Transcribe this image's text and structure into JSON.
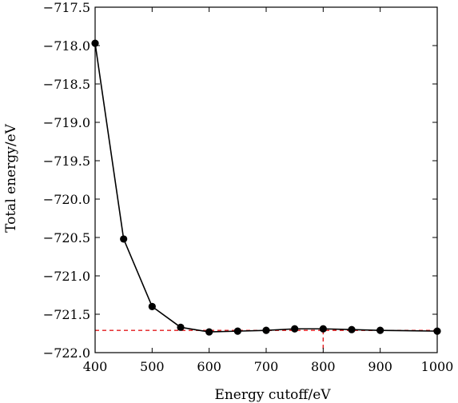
{
  "chart_data": {
    "type": "line",
    "title": "",
    "xlabel": "Energy cutoff/eV",
    "ylabel": "Total energy/eV",
    "xlim": [
      400,
      1000
    ],
    "ylim": [
      -722.0,
      -717.5
    ],
    "x_ticks": [
      400,
      500,
      600,
      700,
      800,
      900,
      1000
    ],
    "y_ticks": [
      -717.5,
      -718.0,
      -718.5,
      -719.0,
      -719.5,
      -720.0,
      -720.5,
      -721.0,
      -721.5,
      -722.0
    ],
    "x_tick_labels": [
      "400",
      "500",
      "600",
      "700",
      "800",
      "900",
      "1000"
    ],
    "y_tick_labels": [
      "−717.5",
      "−718.0",
      "−718.5",
      "−719.0",
      "−719.5",
      "−720.0",
      "−720.5",
      "−721.0",
      "−721.5",
      "−722.0"
    ],
    "grid": false,
    "series": [
      {
        "x": [
          400,
          450,
          500,
          550,
          600,
          650,
          700,
          750,
          800,
          850,
          900,
          1000
        ],
        "y": [
          -717.97,
          -720.52,
          -721.4,
          -721.67,
          -721.73,
          -721.72,
          -721.71,
          -721.69,
          -721.69,
          -721.7,
          -721.71,
          -721.72
        ],
        "color": "#000000",
        "marker": "circle"
      }
    ],
    "reference_lines": [
      {
        "orientation": "horizontal",
        "value": -721.71,
        "color": "#e31a1c",
        "style": "dashed"
      },
      {
        "orientation": "vertical",
        "value": 800,
        "color": "#e31a1c",
        "style": "dashed"
      }
    ]
  }
}
